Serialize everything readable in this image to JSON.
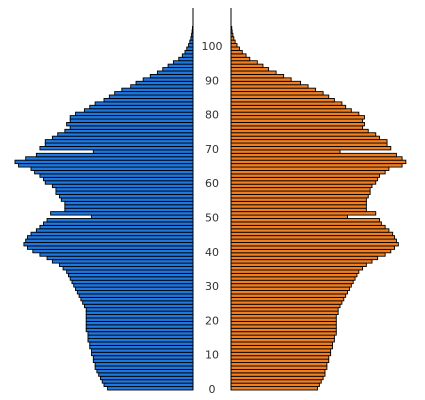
{
  "chart_data": {
    "type": "bar",
    "orientation": "horizontal-population-pyramid",
    "title": "",
    "xlabel": "",
    "ylabel": "",
    "age_ticks": [
      "0",
      "10",
      "20",
      "30",
      "40",
      "50",
      "60",
      "70",
      "80",
      "90",
      "100"
    ],
    "ages": [
      0,
      1,
      2,
      3,
      4,
      5,
      6,
      7,
      8,
      9,
      10,
      11,
      12,
      13,
      14,
      15,
      16,
      17,
      18,
      19,
      20,
      21,
      22,
      23,
      24,
      25,
      26,
      27,
      28,
      29,
      30,
      31,
      32,
      33,
      34,
      35,
      36,
      37,
      38,
      39,
      40,
      41,
      42,
      43,
      44,
      45,
      46,
      47,
      48,
      49,
      50,
      51,
      52,
      53,
      54,
      55,
      56,
      57,
      58,
      59,
      60,
      61,
      62,
      63,
      64,
      65,
      66,
      67,
      68,
      69,
      70,
      71,
      72,
      73,
      74,
      75,
      76,
      77,
      78,
      79,
      80,
      81,
      82,
      83,
      84,
      85,
      86,
      87,
      88,
      89,
      90,
      91,
      92,
      93,
      94,
      95,
      96,
      97,
      98,
      99,
      100,
      101,
      102,
      103,
      104,
      105
    ],
    "xlim": [
      0,
      1.0
    ],
    "series": [
      {
        "side": "left",
        "color": "#1f77e0",
        "values": [
          0.48,
          0.5,
          0.51,
          0.52,
          0.53,
          0.54,
          0.55,
          0.55,
          0.56,
          0.56,
          0.57,
          0.57,
          0.58,
          0.58,
          0.59,
          0.59,
          0.59,
          0.6,
          0.6,
          0.6,
          0.6,
          0.6,
          0.6,
          0.6,
          0.61,
          0.62,
          0.63,
          0.64,
          0.65,
          0.66,
          0.67,
          0.68,
          0.69,
          0.7,
          0.71,
          0.73,
          0.75,
          0.79,
          0.82,
          0.86,
          0.9,
          0.93,
          0.95,
          0.94,
          0.93,
          0.91,
          0.88,
          0.86,
          0.84,
          0.82,
          0.57,
          0.8,
          0.72,
          0.72,
          0.72,
          0.74,
          0.75,
          0.77,
          0.77,
          0.79,
          0.83,
          0.84,
          0.86,
          0.89,
          0.91,
          0.98,
          1.0,
          0.94,
          0.88,
          0.56,
          0.86,
          0.83,
          0.83,
          0.79,
          0.76,
          0.72,
          0.69,
          0.71,
          0.69,
          0.69,
          0.66,
          0.61,
          0.58,
          0.55,
          0.5,
          0.47,
          0.44,
          0.4,
          0.35,
          0.32,
          0.28,
          0.24,
          0.2,
          0.17,
          0.14,
          0.11,
          0.08,
          0.06,
          0.045,
          0.035,
          0.025,
          0.018,
          0.012,
          0.008,
          0.005,
          0.003
        ]
      },
      {
        "side": "right",
        "color": "#f07f22",
        "values": [
          0.46,
          0.47,
          0.48,
          0.49,
          0.5,
          0.5,
          0.51,
          0.51,
          0.52,
          0.52,
          0.53,
          0.53,
          0.54,
          0.54,
          0.55,
          0.55,
          0.56,
          0.56,
          0.56,
          0.56,
          0.56,
          0.56,
          0.57,
          0.57,
          0.58,
          0.59,
          0.6,
          0.61,
          0.62,
          0.63,
          0.64,
          0.65,
          0.66,
          0.67,
          0.68,
          0.7,
          0.72,
          0.75,
          0.78,
          0.82,
          0.85,
          0.87,
          0.89,
          0.88,
          0.87,
          0.86,
          0.84,
          0.82,
          0.8,
          0.79,
          0.62,
          0.77,
          0.72,
          0.72,
          0.72,
          0.72,
          0.73,
          0.74,
          0.74,
          0.75,
          0.77,
          0.78,
          0.79,
          0.82,
          0.84,
          0.91,
          0.93,
          0.91,
          0.88,
          0.58,
          0.85,
          0.83,
          0.83,
          0.79,
          0.77,
          0.73,
          0.7,
          0.71,
          0.7,
          0.71,
          0.68,
          0.64,
          0.61,
          0.59,
          0.55,
          0.52,
          0.49,
          0.45,
          0.41,
          0.37,
          0.32,
          0.28,
          0.24,
          0.2,
          0.17,
          0.14,
          0.1,
          0.08,
          0.06,
          0.045,
          0.032,
          0.022,
          0.015,
          0.01,
          0.006,
          0.004
        ]
      }
    ],
    "grid": false,
    "legend": "none"
  }
}
